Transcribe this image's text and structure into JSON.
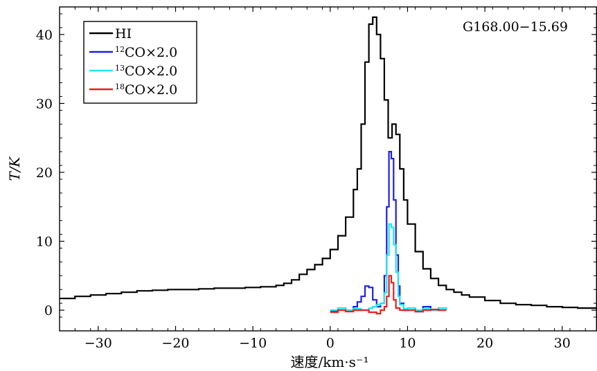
{
  "chart_data": {
    "type": "line",
    "object_label": "G168.00−15.69",
    "xlabel": "速度/km·s⁻¹",
    "ylabel": "T/K",
    "xlim": [
      -35,
      34.5
    ],
    "ylim": [
      -3,
      44
    ],
    "x_ticks": [
      -30,
      -20,
      -10,
      0,
      10,
      20,
      30
    ],
    "x_tick_labels": [
      "−30",
      "−20",
      "−10",
      "0",
      "10",
      "20",
      "30"
    ],
    "y_ticks": [
      0,
      10,
      20,
      30,
      40
    ],
    "y_tick_labels": [
      "0",
      "10",
      "20",
      "30",
      "40"
    ],
    "grid": false,
    "legend_position": "top-left",
    "series": [
      {
        "name": "HI",
        "color": "#000000",
        "x": [
          -35,
          -33,
          -31,
          -29,
          -27,
          -25,
          -23,
          -21,
          -19,
          -17,
          -15,
          -13,
          -11,
          -9,
          -7,
          -6,
          -5,
          -4,
          -3,
          -2,
          -1,
          0,
          1,
          2,
          3,
          3.5,
          4,
          4.5,
          5,
          5.5,
          6,
          6.5,
          7,
          7.5,
          8,
          8.5,
          9,
          9.5,
          10,
          11,
          12,
          13,
          14,
          15,
          16,
          17,
          18,
          20,
          22,
          24,
          26,
          28,
          30,
          32,
          34.5
        ],
        "values": [
          1.7,
          2.0,
          2.2,
          2.4,
          2.6,
          2.8,
          2.9,
          3.0,
          3.0,
          3.1,
          3.2,
          3.2,
          3.3,
          3.4,
          3.6,
          3.9,
          4.4,
          5.2,
          5.9,
          6.6,
          7.5,
          8.8,
          10.8,
          13.5,
          17.5,
          20.5,
          27.0,
          36.0,
          41.5,
          42.5,
          40.0,
          36.5,
          30.5,
          25.0,
          27.0,
          25.5,
          20.5,
          16.0,
          12.5,
          8.5,
          6.0,
          4.6,
          3.6,
          3.0,
          2.6,
          2.2,
          1.9,
          1.4,
          1.0,
          0.8,
          0.7,
          0.5,
          0.4,
          0.3,
          0.2
        ]
      },
      {
        "name": "¹²CO×2.0",
        "color": "#1e1ee0",
        "x": [
          0,
          1,
          2,
          3,
          3.5,
          4,
          4.5,
          5,
          5.5,
          6,
          6.5,
          7,
          7.3,
          7.6,
          7.9,
          8.2,
          8.5,
          8.8,
          9,
          9.5,
          10,
          11,
          12,
          13,
          14,
          15
        ],
        "values": [
          -0.2,
          0.3,
          0.0,
          0.5,
          1.2,
          2.0,
          3.5,
          3.3,
          1.5,
          0.5,
          1.0,
          5.0,
          15.0,
          23.0,
          22.0,
          16.0,
          8.0,
          3.5,
          1.0,
          0.0,
          0.3,
          -0.2,
          0.5,
          0.0,
          0.3,
          0.0
        ]
      },
      {
        "name": "¹³CO×2.0",
        "color": "#1ee6f0",
        "x": [
          0,
          1,
          2,
          3,
          4,
          5,
          5.5,
          6,
          6.5,
          7,
          7.3,
          7.6,
          7.9,
          8.2,
          8.5,
          8.8,
          9,
          9.5,
          10,
          11,
          12,
          13,
          14,
          15
        ],
        "values": [
          0.0,
          0.3,
          0.0,
          0.2,
          0.0,
          0.3,
          0.5,
          0.8,
          1.0,
          2.5,
          8.0,
          12.5,
          12.0,
          9.5,
          5.5,
          2.0,
          0.8,
          0.2,
          0.3,
          0.0,
          0.2,
          0.0,
          0.3,
          0.0
        ]
      },
      {
        "name": "¹⁸CO×2.0",
        "color": "#ee1c1c",
        "x": [
          0,
          1,
          2,
          3,
          4,
          5,
          6,
          6.5,
          7,
          7.3,
          7.6,
          7.9,
          8.2,
          8.5,
          9,
          10,
          11,
          12,
          13,
          14,
          15
        ],
        "values": [
          -0.3,
          0.0,
          -0.2,
          0.0,
          0.0,
          -0.3,
          -0.5,
          0.0,
          0.5,
          2.0,
          5.0,
          4.0,
          1.5,
          0.3,
          0.0,
          0.0,
          -0.2,
          0.0,
          0.1,
          0.0,
          0.0
        ]
      }
    ]
  }
}
